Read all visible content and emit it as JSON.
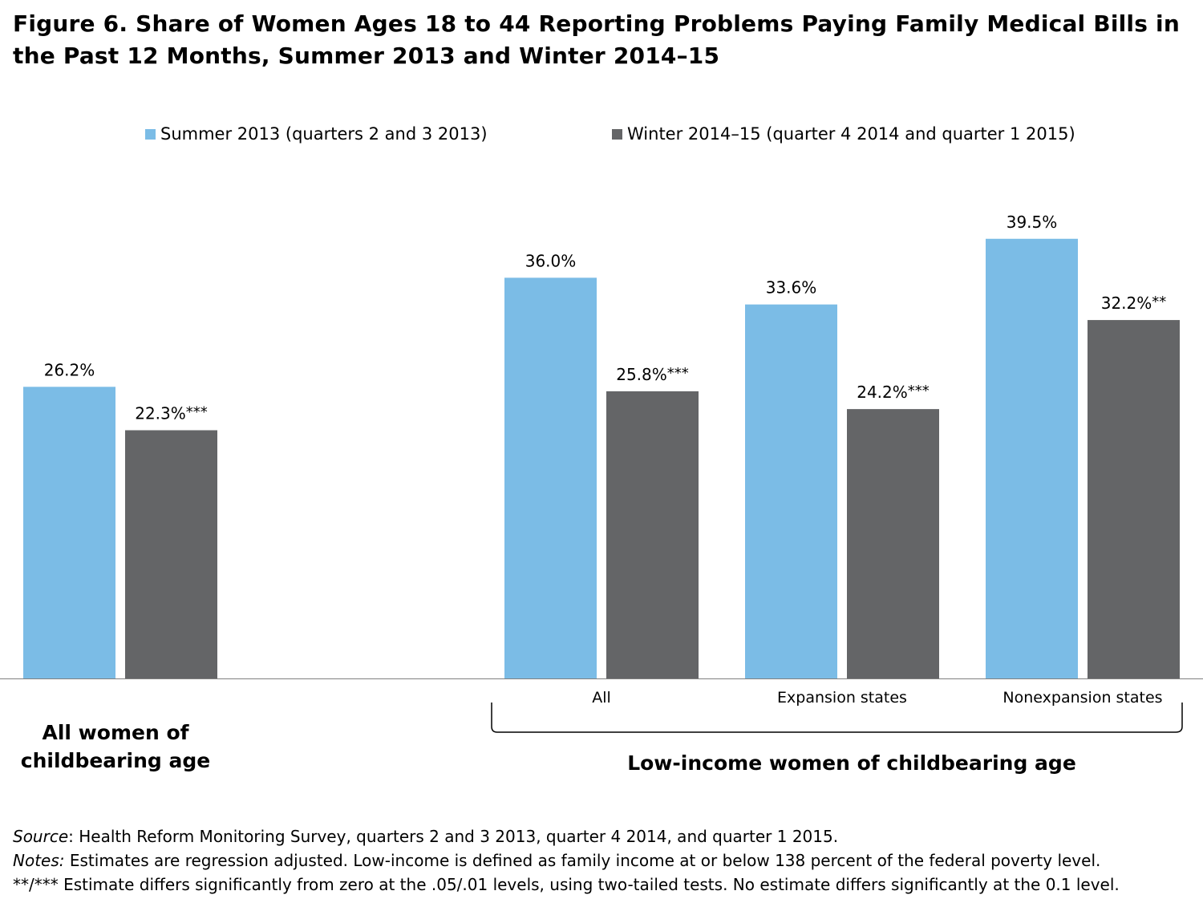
{
  "title_line1": "Figure 6. Share of Women Ages 18 to 44 Reporting Problems Paying Family Medical Bills in",
  "title_line2": "the Past 12 Months,  Summer 2013 and Winter 2014–15",
  "colors": {
    "summer": "#7bbce6",
    "winter": "#646567",
    "axis": "#808080"
  },
  "chart_data": {
    "type": "bar",
    "ylim": [
      0,
      41.5
    ],
    "series": [
      {
        "name": "Summer 2013 (quarters 2 and 3 2013)",
        "values": [
          26.2,
          36.0,
          33.6,
          39.5
        ],
        "labels": [
          "26.2%",
          "36.0%",
          "33.6%",
          "39.5%"
        ],
        "stars": [
          "",
          "",
          "",
          ""
        ]
      },
      {
        "name": "Winter 2014–15 (quarter 4 2014 and quarter 1 2015)",
        "values": [
          22.3,
          25.8,
          24.2,
          32.2
        ],
        "labels": [
          "22.3%",
          "25.8%",
          "24.2%",
          "32.2%"
        ],
        "stars": [
          "***",
          "***",
          "***",
          "**"
        ]
      }
    ],
    "categories": [
      "",
      "All",
      "Expansion states",
      "Nonexpansion states"
    ],
    "group_labels": {
      "all_women_line1": "All women of",
      "all_women_line2": "childbearing age",
      "low_income": "Low-income women of childbearing age"
    }
  },
  "notes": {
    "source_label": "Source",
    "source_text": ": Health Reform Monitoring Survey, quarters 2 and 3 2013, quarter 4 2014, and quarter 1 2015.",
    "notes_label": "Notes:",
    "notes_text": " Estimates are regression adjusted.  Low-income is defined as family income at or below 138 percent of the federal poverty level.",
    "sig_text": "**/*** Estimate differs significantly from zero at the .05/.01 levels, using two-tailed tests.  No estimate differs significantly at the 0.1 level."
  }
}
